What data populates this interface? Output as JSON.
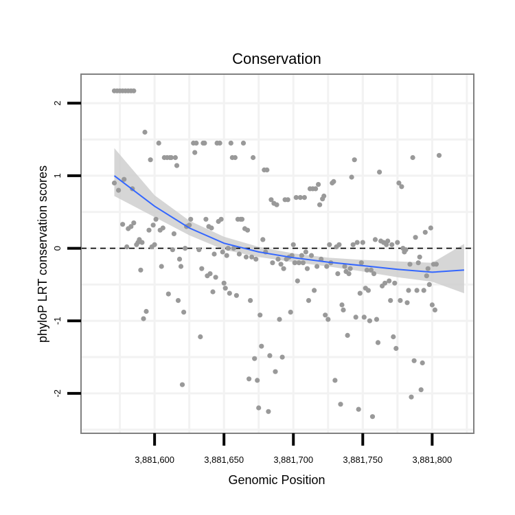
{
  "chart_data": {
    "type": "scatter",
    "title": "Conservation",
    "xlabel": "Genomic Position",
    "ylabel": "phyloP LRT conservation scores",
    "xlim": [
      3881547,
      3881830
    ],
    "ylim": [
      -2.55,
      2.4
    ],
    "x_ticks": [
      3881600,
      3881650,
      3881700,
      3881750,
      3881800
    ],
    "x_tick_labels": [
      "3,881,600",
      "3,881,650",
      "3,881,700",
      "3,881,750",
      "3,881,800"
    ],
    "y_ticks": [
      -2,
      -1,
      0,
      1,
      2
    ],
    "y_tick_labels": [
      "-2",
      "-1",
      "0",
      "1",
      "2"
    ],
    "grid": true,
    "reference_line": {
      "y": 0,
      "style": "dashed"
    },
    "colors": {
      "points": "#999999",
      "smooth": "#3366ff",
      "band": "#cfcfcf",
      "panel_border": "#808080",
      "grid": "#f2f2f2",
      "tick": "#000000"
    },
    "points": [
      [
        3881571,
        2.17
      ],
      [
        3881573,
        2.17
      ],
      [
        3881575,
        2.17
      ],
      [
        3881577,
        2.17
      ],
      [
        3881579,
        2.17
      ],
      [
        3881581,
        2.17
      ],
      [
        3881583,
        2.17
      ],
      [
        3881585,
        2.17
      ],
      [
        3881571,
        0.9
      ],
      [
        3881574,
        0.8
      ],
      [
        3881577,
        0.33
      ],
      [
        3881578,
        0.95
      ],
      [
        3881580,
        0.02
      ],
      [
        3881581,
        0.27
      ],
      [
        3881583,
        0.3
      ],
      [
        3881584,
        0.82
      ],
      [
        3881585,
        0.35
      ],
      [
        3881587,
        0.05
      ],
      [
        3881588,
        0.08
      ],
      [
        3881589,
        0.12
      ],
      [
        3881590,
        -0.3
      ],
      [
        3881591,
        0.08
      ],
      [
        3881592,
        -0.97
      ],
      [
        3881593,
        1.6
      ],
      [
        3881594,
        -0.87
      ],
      [
        3881596,
        0.25
      ],
      [
        3881597,
        1.22
      ],
      [
        3881598,
        0.02
      ],
      [
        3881599,
        0.32
      ],
      [
        3881600,
        0.05
      ],
      [
        3881601,
        0.4
      ],
      [
        3881603,
        1.45
      ],
      [
        3881604,
        0.25
      ],
      [
        3881605,
        -0.25
      ],
      [
        3881606,
        0.28
      ],
      [
        3881607,
        1.25
      ],
      [
        3881609,
        1.25
      ],
      [
        3881610,
        -0.63
      ],
      [
        3881611,
        1.25
      ],
      [
        3881612,
        1.25
      ],
      [
        3881613,
        -0.02
      ],
      [
        3881614,
        0.2
      ],
      [
        3881615,
        1.25
      ],
      [
        3881616,
        1.14
      ],
      [
        3881617,
        -0.72
      ],
      [
        3881618,
        -0.15
      ],
      [
        3881619,
        -0.25
      ],
      [
        3881620,
        -1.88
      ],
      [
        3881621,
        -0.88
      ],
      [
        3881622,
        0.0
      ],
      [
        3881623,
        0.3
      ],
      [
        3881625,
        0.32
      ],
      [
        3881626,
        0.4
      ],
      [
        3881628,
        1.45
      ],
      [
        3881629,
        1.32
      ],
      [
        3881630,
        1.45
      ],
      [
        3881632,
        -0.02
      ],
      [
        3881633,
        -1.22
      ],
      [
        3881634,
        -0.28
      ],
      [
        3881635,
        1.45
      ],
      [
        3881636,
        1.45
      ],
      [
        3881637,
        0.4
      ],
      [
        3881638,
        -0.38
      ],
      [
        3881639,
        0.3
      ],
      [
        3881640,
        -0.35
      ],
      [
        3881641,
        0.28
      ],
      [
        3881642,
        -0.6
      ],
      [
        3881643,
        -0.08
      ],
      [
        3881644,
        -0.4
      ],
      [
        3881645,
        1.45
      ],
      [
        3881646,
        0.37
      ],
      [
        3881647,
        1.45
      ],
      [
        3881648,
        0.4
      ],
      [
        3881649,
        -0.05
      ],
      [
        3881650,
        -0.48
      ],
      [
        3881651,
        -0.55
      ],
      [
        3881652,
        -0.1
      ],
      [
        3881653,
        0.0
      ],
      [
        3881654,
        -0.62
      ],
      [
        3881655,
        1.45
      ],
      [
        3881656,
        1.25
      ],
      [
        3881657,
        0.0
      ],
      [
        3881658,
        1.25
      ],
      [
        3881659,
        -0.65
      ],
      [
        3881660,
        0.4
      ],
      [
        3881661,
        -0.08
      ],
      [
        3881662,
        0.4
      ],
      [
        3881663,
        0.4
      ],
      [
        3881664,
        1.45
      ],
      [
        3881665,
        0.27
      ],
      [
        3881666,
        -0.12
      ],
      [
        3881667,
        0.25
      ],
      [
        3881668,
        -1.8
      ],
      [
        3881669,
        -0.72
      ],
      [
        3881670,
        -0.12
      ],
      [
        3881671,
        1.25
      ],
      [
        3881672,
        -1.52
      ],
      [
        3881673,
        -0.15
      ],
      [
        3881674,
        -1.82
      ],
      [
        3881675,
        -2.2
      ],
      [
        3881676,
        -0.92
      ],
      [
        3881677,
        -1.35
      ],
      [
        3881678,
        0.12
      ],
      [
        3881679,
        1.08
      ],
      [
        3881680,
        -0.05
      ],
      [
        3881681,
        1.08
      ],
      [
        3881682,
        -2.25
      ],
      [
        3881683,
        -1.48
      ],
      [
        3881684,
        0.67
      ],
      [
        3881685,
        -0.2
      ],
      [
        3881686,
        0.62
      ],
      [
        3881687,
        -1.7
      ],
      [
        3881688,
        0.6
      ],
      [
        3881689,
        -0.15
      ],
      [
        3881690,
        -0.98
      ],
      [
        3881691,
        -0.22
      ],
      [
        3881692,
        -1.5
      ],
      [
        3881693,
        -0.28
      ],
      [
        3881694,
        0.67
      ],
      [
        3881695,
        -0.15
      ],
      [
        3881696,
        0.67
      ],
      [
        3881697,
        -0.12
      ],
      [
        3881698,
        -0.88
      ],
      [
        3881699,
        -0.1
      ],
      [
        3881700,
        0.05
      ],
      [
        3881701,
        -0.2
      ],
      [
        3881702,
        0.7
      ],
      [
        3881703,
        -0.45
      ],
      [
        3881704,
        -0.2
      ],
      [
        3881705,
        0.7
      ],
      [
        3881706,
        -0.1
      ],
      [
        3881707,
        -0.2
      ],
      [
        3881708,
        0.7
      ],
      [
        3881709,
        -0.05
      ],
      [
        3881710,
        -0.28
      ],
      [
        3881711,
        -0.72
      ],
      [
        3881712,
        0.82
      ],
      [
        3881713,
        -0.1
      ],
      [
        3881714,
        0.82
      ],
      [
        3881715,
        -0.58
      ],
      [
        3881716,
        0.82
      ],
      [
        3881717,
        -0.25
      ],
      [
        3881718,
        0.88
      ],
      [
        3881719,
        0.6
      ],
      [
        3881720,
        -0.15
      ],
      [
        3881721,
        0.68
      ],
      [
        3881722,
        0.72
      ],
      [
        3881723,
        -0.92
      ],
      [
        3881724,
        -0.25
      ],
      [
        3881725,
        -0.98
      ],
      [
        3881726,
        0.05
      ],
      [
        3881727,
        -0.2
      ],
      [
        3881728,
        0.9
      ],
      [
        3881729,
        0.92
      ],
      [
        3881730,
        -1.82
      ],
      [
        3881731,
        0.02
      ],
      [
        3881732,
        -0.35
      ],
      [
        3881733,
        0.05
      ],
      [
        3881734,
        -2.15
      ],
      [
        3881735,
        -0.78
      ],
      [
        3881736,
        -0.85
      ],
      [
        3881737,
        -0.25
      ],
      [
        3881738,
        -0.32
      ],
      [
        3881739,
        -1.2
      ],
      [
        3881740,
        -0.35
      ],
      [
        3881741,
        -0.28
      ],
      [
        3881742,
        0.98
      ],
      [
        3881743,
        0.05
      ],
      [
        3881744,
        1.22
      ],
      [
        3881745,
        -0.95
      ],
      [
        3881746,
        0.08
      ],
      [
        3881747,
        -2.22
      ],
      [
        3881748,
        -0.62
      ],
      [
        3881749,
        -0.2
      ],
      [
        3881750,
        0.08
      ],
      [
        3881751,
        -0.95
      ],
      [
        3881752,
        -0.55
      ],
      [
        3881753,
        -0.3
      ],
      [
        3881754,
        -0.58
      ],
      [
        3881755,
        -1.0
      ],
      [
        3881756,
        -0.3
      ],
      [
        3881757,
        -2.32
      ],
      [
        3881758,
        -0.35
      ],
      [
        3881759,
        0.12
      ],
      [
        3881760,
        -0.98
      ],
      [
        3881761,
        -1.3
      ],
      [
        3881762,
        1.05
      ],
      [
        3881763,
        0.1
      ],
      [
        3881764,
        -0.52
      ],
      [
        3881765,
        0.08
      ],
      [
        3881766,
        -0.48
      ],
      [
        3881767,
        0.05
      ],
      [
        3881768,
        0.1
      ],
      [
        3881769,
        -0.45
      ],
      [
        3881770,
        -0.72
      ],
      [
        3881771,
        0.05
      ],
      [
        3881772,
        -1.22
      ],
      [
        3881773,
        -0.48
      ],
      [
        3881774,
        -1.38
      ],
      [
        3881775,
        0.08
      ],
      [
        3881776,
        0.9
      ],
      [
        3881777,
        -0.72
      ],
      [
        3881778,
        0.85
      ],
      [
        3881779,
        0.0
      ],
      [
        3881780,
        -0.05
      ],
      [
        3881781,
        -0.02
      ],
      [
        3881782,
        -0.75
      ],
      [
        3881783,
        -0.58
      ],
      [
        3881784,
        -0.22
      ],
      [
        3881785,
        -2.05
      ],
      [
        3881786,
        1.25
      ],
      [
        3881787,
        -1.55
      ],
      [
        3881788,
        0.15
      ],
      [
        3881789,
        -0.58
      ],
      [
        3881790,
        -0.2
      ],
      [
        3881791,
        -0.12
      ],
      [
        3881792,
        -1.95
      ],
      [
        3881793,
        -1.58
      ],
      [
        3881794,
        -0.58
      ],
      [
        3881795,
        0.22
      ],
      [
        3881796,
        -0.38
      ],
      [
        3881797,
        -0.28
      ],
      [
        3881798,
        -0.5
      ],
      [
        3881799,
        0.28
      ],
      [
        3881800,
        -0.78
      ],
      [
        3881801,
        -0.22
      ],
      [
        3881802,
        -0.85
      ],
      [
        3881803,
        -0.22
      ],
      [
        3881805,
        1.28
      ]
    ],
    "smooth": {
      "x": [
        3881571,
        3881600,
        3881625,
        3881650,
        3881675,
        3881700,
        3881725,
        3881750,
        3881775,
        3881800,
        3881823
      ],
      "y": [
        1.0,
        0.58,
        0.28,
        0.07,
        -0.05,
        -0.13,
        -0.19,
        -0.24,
        -0.29,
        -0.33,
        -0.3
      ],
      "lower": [
        0.72,
        0.43,
        0.18,
        -0.02,
        -0.12,
        -0.19,
        -0.25,
        -0.32,
        -0.4,
        -0.46,
        -0.62
      ],
      "upper": [
        1.38,
        0.73,
        0.38,
        0.16,
        0.02,
        -0.07,
        -0.13,
        -0.16,
        -0.18,
        -0.2,
        0.06
      ]
    }
  }
}
